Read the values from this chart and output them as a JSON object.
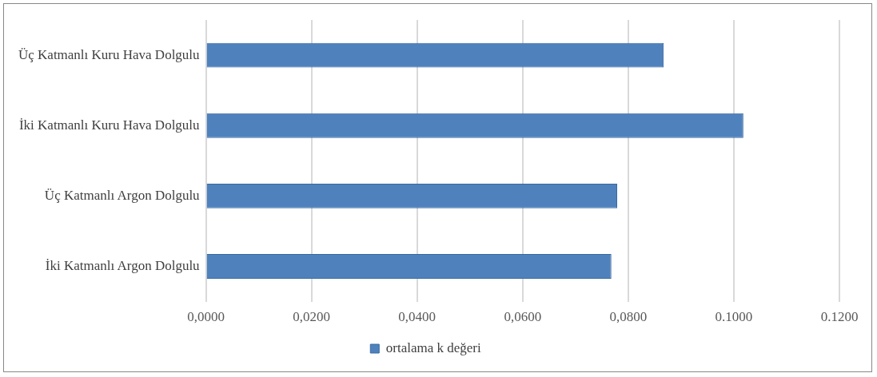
{
  "chart_data": {
    "type": "bar",
    "orientation": "horizontal",
    "categories": [
      "Üç Katmanlı Kuru Hava Dolgulu",
      "İki Katmanlı Kuru Hava Dolgulu",
      "Üç Katmanlı Argon Dolgulu",
      "İki Katmanlı Argon Dolgulu"
    ],
    "series": [
      {
        "name": "ortalama k değeri",
        "color": "#4f81bd",
        "values": [
          0.0867,
          0.1018,
          0.0779,
          0.0768
        ]
      }
    ],
    "xlim": [
      0,
      0.12
    ],
    "xticks": [
      {
        "value": 0,
        "label": "0,0000"
      },
      {
        "value": 0.02,
        "label": "0,0200"
      },
      {
        "value": 0.04,
        "label": "0,0400"
      },
      {
        "value": 0.06,
        "label": "0,0600"
      },
      {
        "value": 0.08,
        "label": "0,0800"
      },
      {
        "value": 0.1,
        "label": "0.1000"
      },
      {
        "value": 0.12,
        "label": "0.1200"
      }
    ],
    "grid": "x",
    "legend": "bottom"
  }
}
